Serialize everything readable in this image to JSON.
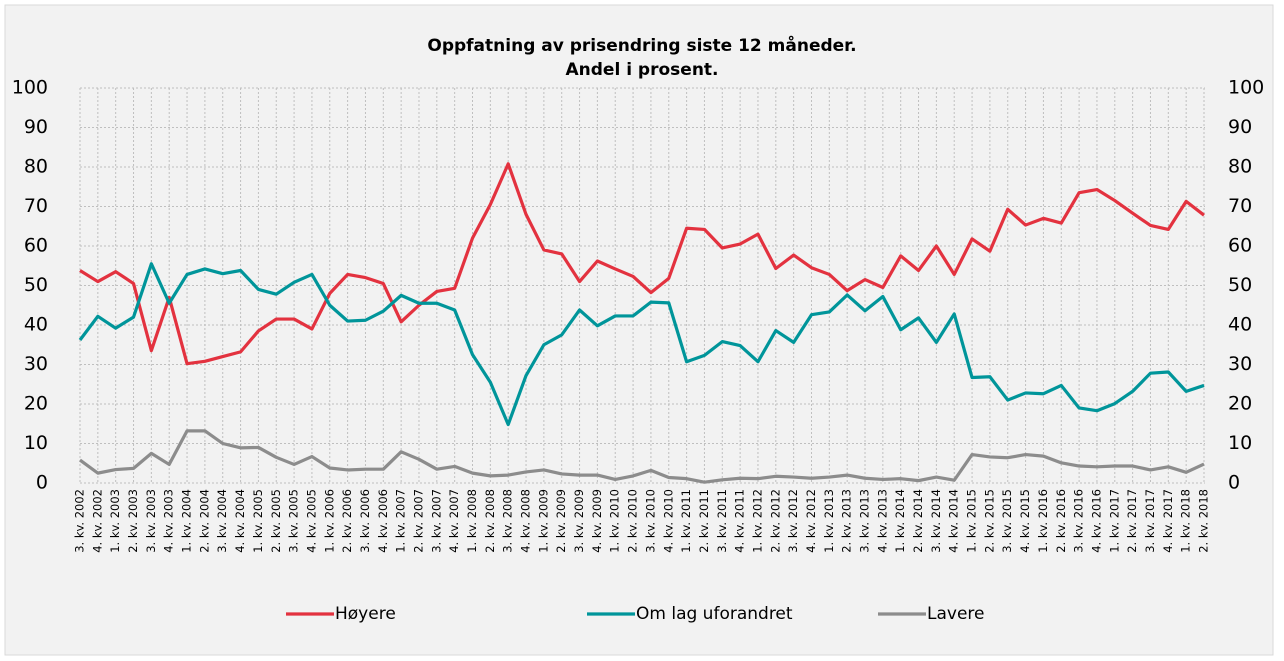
{
  "chart_data": {
    "type": "line",
    "title": "Oppfatning av prisendring siste 12 måneder.",
    "subtitle": "Andel i prosent.",
    "categories": [
      "3. kv. 2002",
      "4. kv. 2002",
      "1. kv. 2003",
      "2. kv. 2003",
      "3. kv. 2003",
      "4. kv. 2003",
      "1. kv. 2004",
      "2. kv. 2004",
      "3. kv. 2004",
      "4. kv. 2004",
      "1. kv. 2005",
      "2. kv. 2005",
      "3. kv. 2005",
      "4. kv. 2005",
      "1. kv. 2006",
      "2. kv. 2006",
      "3. kv. 2006",
      "4. kv. 2006",
      "1. kv. 2007",
      "2. kv. 2007",
      "3. kv. 2007",
      "4. kv. 2007",
      "1. kv. 2008",
      "2. kv. 2008",
      "3. kv. 2008",
      "4. kv. 2008",
      "1. kv. 2009",
      "2. kv. 2009",
      "3. kv. 2009",
      "4. kv. 2009",
      "1. kv. 2010",
      "2. kv. 2010",
      "3. kv. 2010",
      "4. kv. 2010",
      "1. kv. 2011",
      "2. kv. 2011",
      "3. kv. 2011",
      "4. kv. 2011",
      "1. kv. 2012",
      "2. kv. 2012",
      "3. kv. 2012",
      "4. kv. 2012",
      "1. kv. 2013",
      "2. kv. 2013",
      "3. kv. 2013",
      "4. kv. 2013",
      "1. kv. 2014",
      "2. kv. 2014",
      "3. kv. 2014",
      "4. kv. 2014",
      "1. kv. 2015",
      "2. kv. 2015",
      "3. kv. 2015",
      "4. kv. 2015",
      "1. kv. 2016",
      "2. kv. 2016",
      "3. kv. 2016",
      "4. kv. 2016",
      "1. kv. 2017",
      "2. kv. 2017",
      "3. kv. 2017",
      "4. kv. 2017",
      "1. kv. 2018",
      "2. kv. 2018"
    ],
    "series": [
      {
        "name": "Høyere",
        "color": "#e3323f",
        "values": [
          53.8,
          51,
          53.5,
          50.5,
          33.5,
          47,
          30.2,
          30.8,
          32,
          33.2,
          38.5,
          41.5,
          41.5,
          39,
          48,
          52.8,
          52,
          50.5,
          40.8,
          45,
          48.5,
          49.3,
          62,
          70.5,
          80.8,
          68,
          59,
          58,
          51,
          56.2,
          54.2,
          52.3,
          48.2,
          51.8,
          64.5,
          64.2,
          59.5,
          60.5,
          63,
          54.3,
          57.7,
          54.5,
          52.8,
          48.7,
          51.5,
          49.5,
          57.5,
          53.8,
          60,
          52.8,
          61.8,
          58.7,
          69.3,
          65.3,
          67,
          65.8,
          73.5,
          74.3,
          71.5,
          68.3,
          65.2,
          64.2,
          71.3,
          67.8
        ]
      },
      {
        "name": "Om lag uforandret",
        "color": "#00959a",
        "values": [
          36.2,
          42.2,
          39.2,
          42,
          55.5,
          45.5,
          52.8,
          54.2,
          53,
          53.8,
          49,
          47.8,
          50.8,
          52.8,
          45,
          41,
          41.2,
          43.5,
          47.5,
          45.5,
          45.5,
          43.8,
          32.5,
          25.5,
          14.8,
          27.2,
          35,
          37.5,
          43.8,
          39.8,
          42.3,
          42.3,
          45.8,
          45.6,
          30.7,
          32.3,
          35.8,
          34.8,
          30.7,
          38.6,
          35.6,
          42.6,
          43.3,
          47.6,
          43.6,
          47.2,
          38.8,
          41.8,
          35.6,
          42.8,
          26.7,
          26.9,
          21,
          22.8,
          22.6,
          24.7,
          19,
          18.3,
          20.1,
          23.2,
          27.8,
          28.1,
          23.2,
          24.7
        ]
      },
      {
        "name": "Lavere",
        "color": "#8c8c8c",
        "values": [
          5.8,
          2.5,
          3.4,
          3.7,
          7.5,
          4.7,
          13.2,
          13.2,
          10,
          8.9,
          9,
          6.5,
          4.7,
          6.7,
          3.8,
          3.3,
          3.5,
          3.5,
          7.9,
          6,
          3.5,
          4.2,
          2.5,
          1.8,
          2,
          2.8,
          3.3,
          2.3,
          2,
          2,
          0.9,
          1.8,
          3.2,
          1.4,
          1.1,
          0.2,
          0.8,
          1.2,
          1.1,
          1.7,
          1.5,
          1.2,
          1.5,
          2,
          1.2,
          0.9,
          1.1,
          0.6,
          1.5,
          0.7,
          7.2,
          6.6,
          6.4,
          7.2,
          6.8,
          5.1,
          4.3,
          4.1,
          4.3,
          4.3,
          3.3,
          4.1,
          2.7,
          4.8
        ]
      }
    ],
    "ylim": [
      0,
      100
    ],
    "yticks": [
      0,
      10,
      20,
      30,
      40,
      50,
      60,
      70,
      80,
      90,
      100
    ],
    "y2lim": [
      0,
      100
    ],
    "y2ticks": [
      0,
      10,
      20,
      30,
      40,
      50,
      60,
      70,
      80,
      90,
      100
    ],
    "grid": true,
    "legend": "bottom"
  }
}
